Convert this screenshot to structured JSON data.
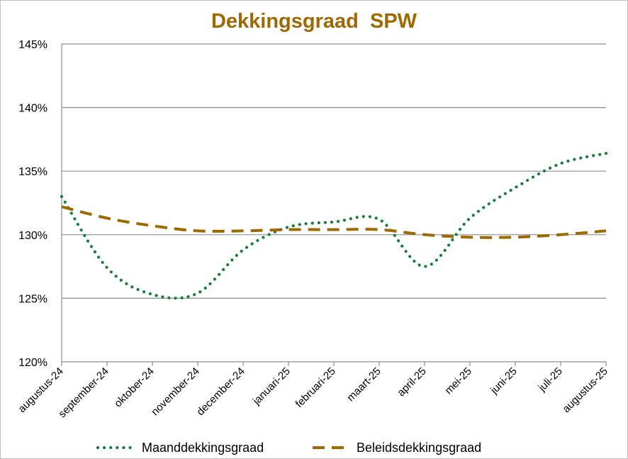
{
  "chart_data": {
    "type": "line",
    "title": "Dekkingsgraad  SPW",
    "xlabel": "",
    "ylabel": "",
    "x": [
      "augustus-24",
      "september-24",
      "oktober-24",
      "november-24",
      "december-24",
      "januari-25",
      "februari-25",
      "maart-25",
      "april-25",
      "mei-25",
      "juni-25",
      "juli-25",
      "augustus-25"
    ],
    "y_ticks": [
      "120%",
      "125%",
      "130%",
      "135%",
      "140%",
      "145%"
    ],
    "ylim": [
      120,
      145
    ],
    "grid": "horizontal",
    "legend_position": "bottom",
    "series": [
      {
        "name": "Maanddekkingsgraad",
        "style": "dotted",
        "color": "#1a7a3a",
        "values": [
          133.0,
          127.4,
          125.3,
          125.4,
          128.8,
          130.6,
          131.0,
          131.2,
          127.5,
          131.3,
          133.7,
          135.6,
          136.4
        ]
      },
      {
        "name": "Beleidsdekkingsgraad",
        "style": "dashed",
        "color": "#9c6a00",
        "values": [
          132.2,
          131.3,
          130.7,
          130.3,
          130.3,
          130.4,
          130.4,
          130.4,
          130.0,
          129.8,
          129.8,
          130.0,
          130.3
        ]
      }
    ]
  }
}
